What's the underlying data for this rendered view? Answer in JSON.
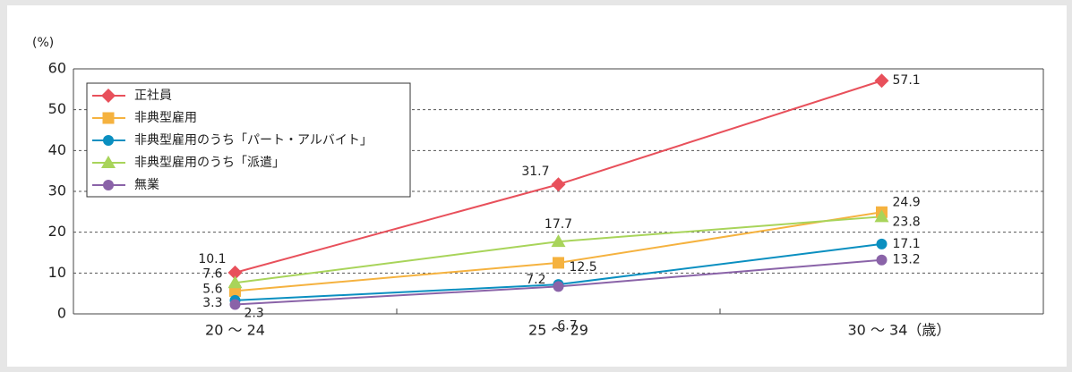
{
  "chart_data": {
    "type": "line",
    "y_unit": "(%)",
    "categories": [
      "20 ～ 24",
      "25 ～ 29",
      "30 ～ 34（歳）"
    ],
    "series": [
      {
        "name": "正社員",
        "color": "#e8505b",
        "marker": "diamond",
        "values": [
          10.1,
          31.7,
          57.1
        ]
      },
      {
        "name": "非典型雇用",
        "color": "#f5b23f",
        "marker": "square",
        "values": [
          5.6,
          12.5,
          24.9
        ]
      },
      {
        "name": "非典型雇用のうち「パート・アルバイト」",
        "color": "#0a8fc0",
        "marker": "circle",
        "values": [
          3.3,
          7.2,
          17.1
        ]
      },
      {
        "name": "非典型雇用のうち「派遣」",
        "color": "#a8d45a",
        "marker": "triangle",
        "values": [
          7.6,
          17.7,
          23.8
        ]
      },
      {
        "name": "無業",
        "color": "#8a63a8",
        "marker": "circle",
        "values": [
          2.3,
          6.7,
          13.2
        ]
      }
    ],
    "ylim": [
      0,
      60
    ],
    "yticks": [
      0,
      10,
      20,
      30,
      40,
      50,
      60
    ],
    "grid": true,
    "legend": "upper left"
  }
}
